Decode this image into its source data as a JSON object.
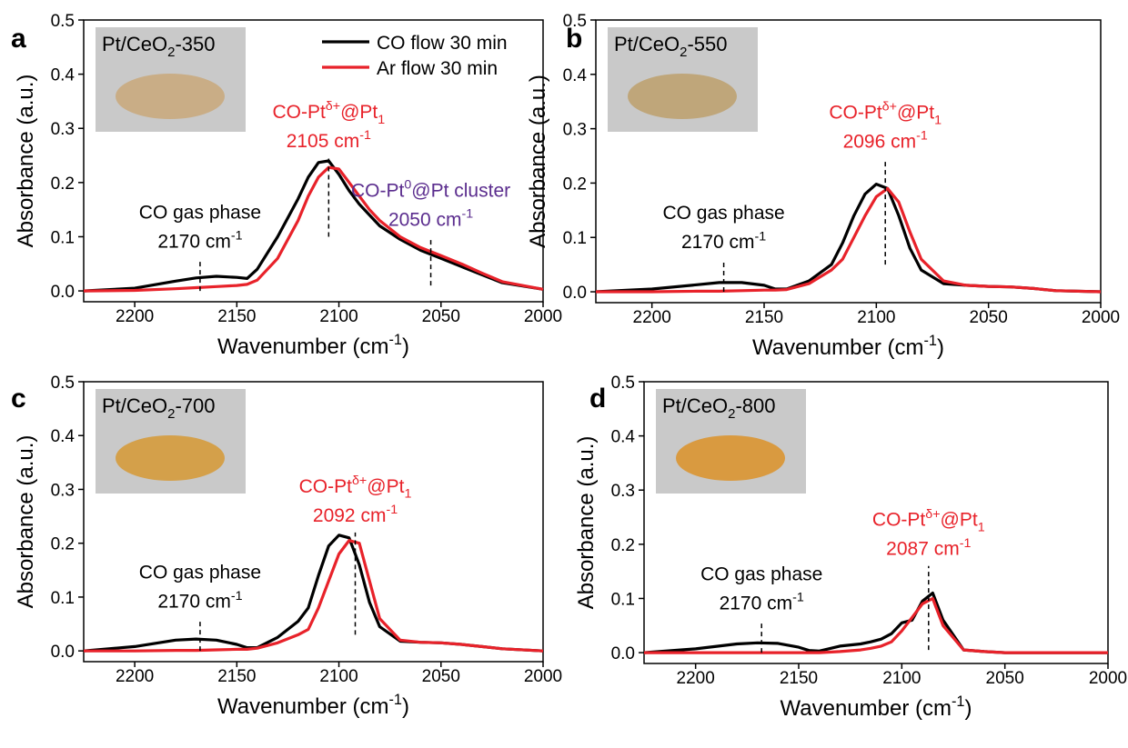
{
  "chart_data": [
    {
      "type": "line",
      "panel_label": "a",
      "sample_label": [
        "Pt/CeO",
        {
          "sub": "2"
        },
        "-350"
      ],
      "sample_color": "#c9ad86",
      "x_label": [
        "Wavenumber (cm",
        {
          "sup": "-1"
        },
        ")"
      ],
      "y_label": "Absorbance (a.u.)",
      "xlim": [
        2225,
        2000
      ],
      "ylim": [
        -0.02,
        0.5
      ],
      "xticks": [
        2200,
        2150,
        2100,
        2050,
        2000
      ],
      "yticks": [
        {
          "value": 0,
          "label": "0.0"
        },
        {
          "value": 0.1,
          "label": "0.1"
        },
        {
          "value": 0.2,
          "label": "0.2"
        },
        {
          "value": 0.3,
          "label": "0.3"
        },
        {
          "value": 0.4,
          "label": "0.4"
        },
        {
          "value": 0.5,
          "label": "0.5"
        }
      ],
      "legend": true,
      "x": [
        2225,
        2200,
        2180,
        2170,
        2160,
        2150,
        2145,
        2140,
        2130,
        2120,
        2115,
        2110,
        2105,
        2100,
        2095,
        2090,
        2085,
        2080,
        2070,
        2060,
        2050,
        2040,
        2030,
        2020,
        2000
      ],
      "series": [
        {
          "name": "CO flow 30 min",
          "color": "#000000",
          "values": [
            0,
            0.005,
            0.018,
            0.024,
            0.027,
            0.025,
            0.023,
            0.04,
            0.1,
            0.17,
            0.21,
            0.237,
            0.24,
            0.215,
            0.185,
            0.16,
            0.14,
            0.12,
            0.095,
            0.075,
            0.06,
            0.045,
            0.03,
            0.015,
            0.003
          ]
        },
        {
          "name": "Ar flow 30 min",
          "color": "#e8222a",
          "values": [
            0,
            0.001,
            0.004,
            0.006,
            0.008,
            0.01,
            0.012,
            0.02,
            0.06,
            0.13,
            0.175,
            0.21,
            0.228,
            0.225,
            0.2,
            0.175,
            0.15,
            0.13,
            0.1,
            0.08,
            0.065,
            0.05,
            0.033,
            0.017,
            0.003
          ]
        }
      ],
      "annotations": [
        {
          "x": 2168,
          "y_range": [
            0,
            0.06
          ],
          "color": "#000000",
          "lines": [
            [
              "CO gas phase"
            ],
            [
              "2170 cm",
              {
                "sup": "-1"
              }
            ]
          ]
        },
        {
          "x": 2105,
          "y_range": [
            0.1,
            0.245
          ],
          "color": "#e8222a",
          "lines": [
            [
              "CO-Pt",
              {
                "sup": "δ+"
              },
              "@Pt",
              {
                "sub": "1"
              }
            ],
            [
              "2105 cm",
              {
                "sup": "-1"
              }
            ]
          ]
        },
        {
          "x": 2055,
          "y_range": [
            0.01,
            0.1
          ],
          "color": "#5b2d8e",
          "lines": [
            [
              "CO-Pt",
              {
                "sup": "0"
              },
              "@Pt cluster"
            ],
            [
              "2050 cm",
              {
                "sup": "-1"
              }
            ]
          ]
        }
      ]
    },
    {
      "type": "line",
      "panel_label": "b",
      "sample_label": [
        "Pt/CeO",
        {
          "sub": "2"
        },
        "-550"
      ],
      "sample_color": "#bfa67a",
      "x_label": [
        "Wavenumber (cm",
        {
          "sup": "-1"
        },
        ")"
      ],
      "y_label": "Absorbance (a.u.)",
      "xlim": [
        2225,
        2000
      ],
      "ylim": [
        -0.02,
        0.5
      ],
      "xticks": [
        2200,
        2150,
        2100,
        2050,
        2000
      ],
      "yticks": [
        {
          "value": 0,
          "label": "0.0"
        },
        {
          "value": 0.1,
          "label": "0.1"
        },
        {
          "value": 0.2,
          "label": "0.2"
        },
        {
          "value": 0.3,
          "label": "0.3"
        },
        {
          "value": 0.4,
          "label": "0.4"
        },
        {
          "value": 0.5,
          "label": "0.5"
        }
      ],
      "legend": false,
      "x": [
        2225,
        2200,
        2180,
        2170,
        2160,
        2150,
        2145,
        2140,
        2130,
        2120,
        2115,
        2110,
        2105,
        2100,
        2095,
        2090,
        2085,
        2080,
        2070,
        2060,
        2050,
        2040,
        2030,
        2020,
        2000
      ],
      "series": [
        {
          "color": "#000000",
          "values": [
            0,
            0.005,
            0.013,
            0.017,
            0.017,
            0.012,
            0.005,
            0.005,
            0.02,
            0.05,
            0.09,
            0.14,
            0.18,
            0.198,
            0.19,
            0.14,
            0.08,
            0.04,
            0.015,
            0.012,
            0.01,
            0.009,
            0.006,
            0.002,
            0
          ]
        },
        {
          "color": "#e8222a",
          "values": [
            0,
            0,
            0.001,
            0.001,
            0.002,
            0.003,
            0.003,
            0.004,
            0.015,
            0.04,
            0.06,
            0.1,
            0.14,
            0.175,
            0.19,
            0.165,
            0.11,
            0.06,
            0.02,
            0.012,
            0.01,
            0.009,
            0.006,
            0.002,
            0
          ]
        }
      ],
      "annotations": [
        {
          "x": 2168,
          "y_range": [
            0,
            0.06
          ],
          "color": "#000000",
          "lines": [
            [
              "CO gas phase"
            ],
            [
              "2170 cm",
              {
                "sup": "-1"
              }
            ]
          ]
        },
        {
          "x": 2096,
          "y_range": [
            0.05,
            0.245
          ],
          "color": "#e8222a",
          "lines": [
            [
              "CO-Pt",
              {
                "sup": "δ+"
              },
              "@Pt",
              {
                "sub": "1"
              }
            ],
            [
              "2096 cm",
              {
                "sup": "-1"
              }
            ]
          ]
        }
      ]
    },
    {
      "type": "line",
      "panel_label": "c",
      "sample_label": [
        "Pt/CeO",
        {
          "sub": "2"
        },
        "-700"
      ],
      "sample_color": "#d4a04a",
      "x_label": [
        "Wavenumber (cm",
        {
          "sup": "-1"
        },
        ")"
      ],
      "y_label": "Absorbance (a.u.)",
      "xlim": [
        2225,
        2000
      ],
      "ylim": [
        -0.02,
        0.5
      ],
      "xticks": [
        2200,
        2150,
        2100,
        2050,
        2000
      ],
      "yticks": [
        {
          "value": 0,
          "label": "0.0"
        },
        {
          "value": 0.1,
          "label": "0.1"
        },
        {
          "value": 0.2,
          "label": "0.2"
        },
        {
          "value": 0.3,
          "label": "0.3"
        },
        {
          "value": 0.4,
          "label": "0.4"
        },
        {
          "value": 0.5,
          "label": "0.5"
        }
      ],
      "legend": false,
      "x": [
        2225,
        2200,
        2180,
        2170,
        2160,
        2150,
        2145,
        2140,
        2130,
        2120,
        2115,
        2110,
        2105,
        2100,
        2095,
        2090,
        2085,
        2080,
        2070,
        2060,
        2050,
        2040,
        2030,
        2020,
        2000
      ],
      "series": [
        {
          "color": "#000000",
          "values": [
            0,
            0.008,
            0.02,
            0.022,
            0.02,
            0.012,
            0.006,
            0.006,
            0.025,
            0.055,
            0.08,
            0.14,
            0.195,
            0.215,
            0.21,
            0.16,
            0.09,
            0.045,
            0.018,
            0.016,
            0.015,
            0.012,
            0.008,
            0.004,
            0
          ]
        },
        {
          "color": "#e8222a",
          "values": [
            0,
            0,
            0.001,
            0.001,
            0.002,
            0.003,
            0.003,
            0.005,
            0.015,
            0.03,
            0.04,
            0.08,
            0.13,
            0.18,
            0.205,
            0.2,
            0.13,
            0.06,
            0.02,
            0.016,
            0.015,
            0.012,
            0.008,
            0.004,
            0
          ]
        }
      ],
      "annotations": [
        {
          "x": 2168,
          "y_range": [
            0,
            0.06
          ],
          "color": "#000000",
          "lines": [
            [
              "CO gas phase"
            ],
            [
              "2170 cm",
              {
                "sup": "-1"
              }
            ]
          ]
        },
        {
          "x": 2092,
          "y_range": [
            0.03,
            0.22
          ],
          "color": "#e8222a",
          "lines": [
            [
              "CO-Pt",
              {
                "sup": "δ+"
              },
              "@Pt",
              {
                "sub": "1"
              }
            ],
            [
              "2092 cm",
              {
                "sup": "-1"
              }
            ]
          ]
        }
      ]
    },
    {
      "type": "line",
      "panel_label": "d",
      "sample_label": [
        "Pt/CeO",
        {
          "sub": "2"
        },
        "-800"
      ],
      "sample_color": "#d99a40",
      "x_label": [
        "Wavenumber (cm",
        {
          "sup": "-1"
        },
        ")"
      ],
      "y_label": "Absorbance (a.u.)",
      "xlim": [
        2225,
        2000
      ],
      "ylim": [
        -0.02,
        0.5
      ],
      "xticks": [
        2200,
        2150,
        2100,
        2050,
        2000
      ],
      "yticks": [
        {
          "value": 0,
          "label": "0.0"
        },
        {
          "value": 0.1,
          "label": "0.1"
        },
        {
          "value": 0.2,
          "label": "0.2"
        },
        {
          "value": 0.3,
          "label": "0.3"
        },
        {
          "value": 0.4,
          "label": "0.4"
        },
        {
          "value": 0.5,
          "label": "0.5"
        }
      ],
      "legend": false,
      "x": [
        2225,
        2200,
        2180,
        2170,
        2160,
        2150,
        2145,
        2140,
        2130,
        2120,
        2115,
        2110,
        2105,
        2100,
        2095,
        2090,
        2085,
        2080,
        2070,
        2060,
        2050,
        2040,
        2030,
        2020,
        2000
      ],
      "series": [
        {
          "color": "#000000",
          "values": [
            0,
            0.007,
            0.016,
            0.018,
            0.017,
            0.01,
            0.004,
            0.003,
            0.012,
            0.016,
            0.02,
            0.025,
            0.035,
            0.055,
            0.06,
            0.095,
            0.11,
            0.06,
            0.005,
            0.002,
            0,
            0,
            0,
            0,
            0
          ]
        },
        {
          "color": "#e8222a",
          "values": [
            0,
            0,
            0,
            0,
            0,
            0,
            0,
            0,
            0.002,
            0.005,
            0.008,
            0.012,
            0.02,
            0.04,
            0.065,
            0.09,
            0.1,
            0.05,
            0.005,
            0.002,
            0,
            0,
            0,
            0,
            0
          ]
        }
      ],
      "annotations": [
        {
          "x": 2168,
          "y_range": [
            0,
            0.06
          ],
          "color": "#000000",
          "lines": [
            [
              "CO gas phase"
            ],
            [
              "2170 cm",
              {
                "sup": "-1"
              }
            ]
          ]
        },
        {
          "x": 2087,
          "y_range": [
            0.005,
            0.16
          ],
          "color": "#e8222a",
          "lines": [
            [
              "CO-Pt",
              {
                "sup": "δ+"
              },
              "@Pt",
              {
                "sub": "1"
              }
            ],
            [
              "2087 cm",
              {
                "sup": "-1"
              }
            ]
          ]
        }
      ]
    }
  ]
}
